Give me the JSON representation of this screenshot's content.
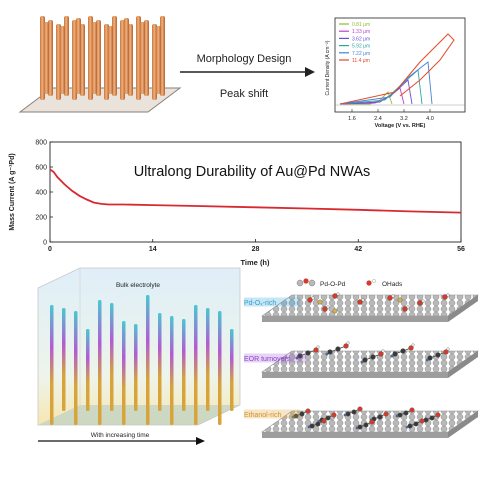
{
  "top": {
    "arrow_label_1": "Morphology Design",
    "arrow_label_2": "Peak shift",
    "inset": {
      "ylabel": "Current Density (A cm⁻²)",
      "xlabel": "Voltage (V vs. RHE)",
      "xticks": [
        "1.6",
        "2.4",
        "3.2",
        "4.0"
      ],
      "legend": [
        {
          "label": "0.81 μm",
          "color": "#8fbf2a"
        },
        {
          "label": "1.33 μm",
          "color": "#c43cd1"
        },
        {
          "label": "3.62 μm",
          "color": "#6b4fd8"
        },
        {
          "label": "5.92 μm",
          "color": "#2aa6a0"
        },
        {
          "label": "7.22 μm",
          "color": "#4a7fd6"
        },
        {
          "label": "11.4 μm",
          "color": "#e24a2a"
        }
      ]
    }
  },
  "chart_data": {
    "type": "line",
    "title": "Ultralong Durability of Au@Pd NWAs",
    "xlabel": "Time (h)",
    "ylabel": "Mass Current (A g⁻¹Pd)",
    "xlim": [
      0,
      56
    ],
    "ylim": [
      0,
      800
    ],
    "xticks": [
      0,
      14,
      28,
      42,
      56
    ],
    "yticks": [
      0,
      200,
      400,
      600,
      800
    ],
    "color": "#d8292f",
    "series": [
      {
        "x": [
          0,
          0.5,
          1,
          2,
          3,
          4,
          5,
          6,
          7,
          8,
          10,
          14,
          20,
          28,
          35,
          42,
          49,
          56
        ],
        "y": [
          580,
          560,
          520,
          460,
          410,
          370,
          340,
          315,
          305,
          300,
          300,
          295,
          288,
          278,
          268,
          258,
          245,
          235
        ]
      }
    ]
  },
  "bottom": {
    "bulk_label": "Bulk electrolyte",
    "time_label": "With increasing time",
    "legend_1": "Pd-O-Pd",
    "legend_2": "OHads",
    "band_1": "Pd-Oₓ-rich",
    "band_2": "EOR turnovers",
    "band_3": "Ethanol-rich",
    "colors": {
      "band_1": "#2d9fd8",
      "band_2": "#8e3fd0",
      "band_3": "#e0a83a"
    }
  }
}
